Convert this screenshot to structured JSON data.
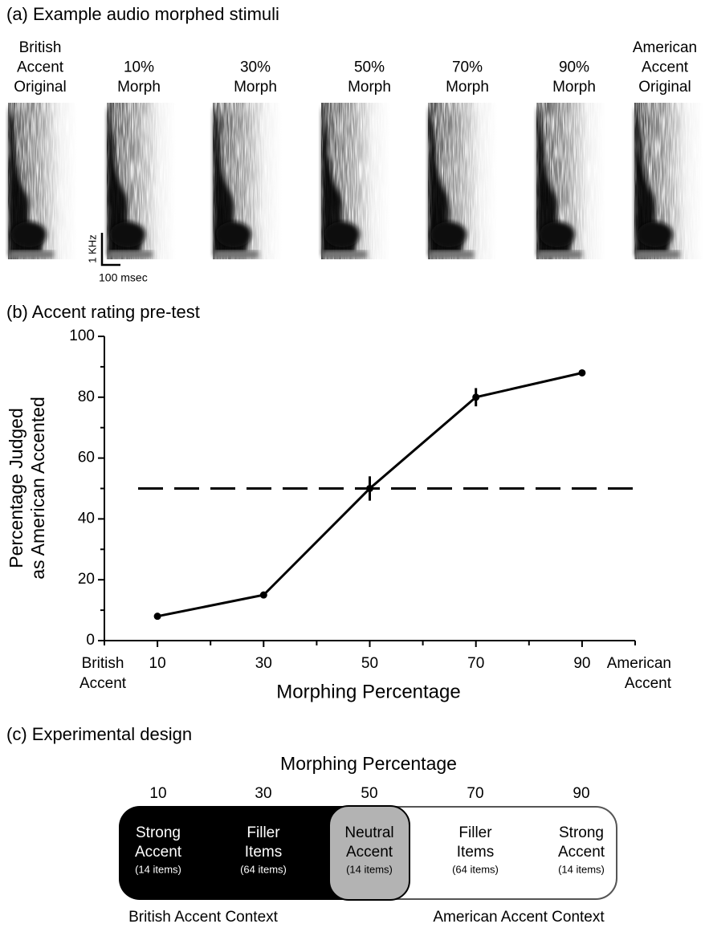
{
  "panel_a": {
    "title": "(a) Example audio morphed stimuli",
    "labels": [
      [
        "British",
        "Accent",
        "Original"
      ],
      [
        "10%",
        "Morph"
      ],
      [
        "30%",
        "Morph"
      ],
      [
        "50%",
        "Morph"
      ],
      [
        "70%",
        "Morph"
      ],
      [
        "90%",
        "Morph"
      ],
      [
        "American",
        "Accent",
        "Original"
      ]
    ],
    "scale_y": "1 KHz",
    "scale_x": "100 msec"
  },
  "chart_data": {
    "type": "line",
    "title": "(b) Accent rating pre-test",
    "y_label": [
      "Percentage Judged",
      "as American Accented"
    ],
    "x_label": "Morphing Percentage",
    "x_left_label": [
      "British",
      "Accent"
    ],
    "x_right_label": [
      "American",
      "Accent"
    ],
    "x": [
      10,
      30,
      50,
      70,
      90
    ],
    "series": [
      {
        "color": "#000000",
        "values": [
          8,
          15,
          50,
          80,
          88
        ],
        "errors": [
          1,
          1,
          4,
          3,
          1
        ]
      }
    ],
    "xlim": [
      0,
      100
    ],
    "xticks": [
      10,
      30,
      50,
      70,
      90
    ],
    "xminorticks": [
      0,
      20,
      40,
      60,
      80,
      100
    ],
    "ylim": [
      0,
      100
    ],
    "yticks": [
      0,
      20,
      40,
      60,
      80,
      100
    ],
    "yminorticks": [
      10,
      30,
      50,
      70,
      90
    ],
    "hline": 50
  },
  "panel_c": {
    "title": "(c) Experimental design",
    "header": "Morphing Percentage",
    "columns": [
      "10",
      "30",
      "50",
      "70",
      "90"
    ],
    "cells": [
      {
        "lines": [
          "Strong",
          "Accent"
        ],
        "items": "(14 items)"
      },
      {
        "lines": [
          "Filler",
          "Items"
        ],
        "items": "(64 items)"
      },
      {
        "lines": [
          "Neutral",
          "Accent"
        ],
        "items": "(14 items)"
      },
      {
        "lines": [
          "Filler",
          "Items"
        ],
        "items": "(64 items)"
      },
      {
        "lines": [
          "Strong",
          "Accent"
        ],
        "items": "(14 items)"
      }
    ],
    "contexts": [
      "British Accent Context",
      "American Accent Context"
    ]
  }
}
